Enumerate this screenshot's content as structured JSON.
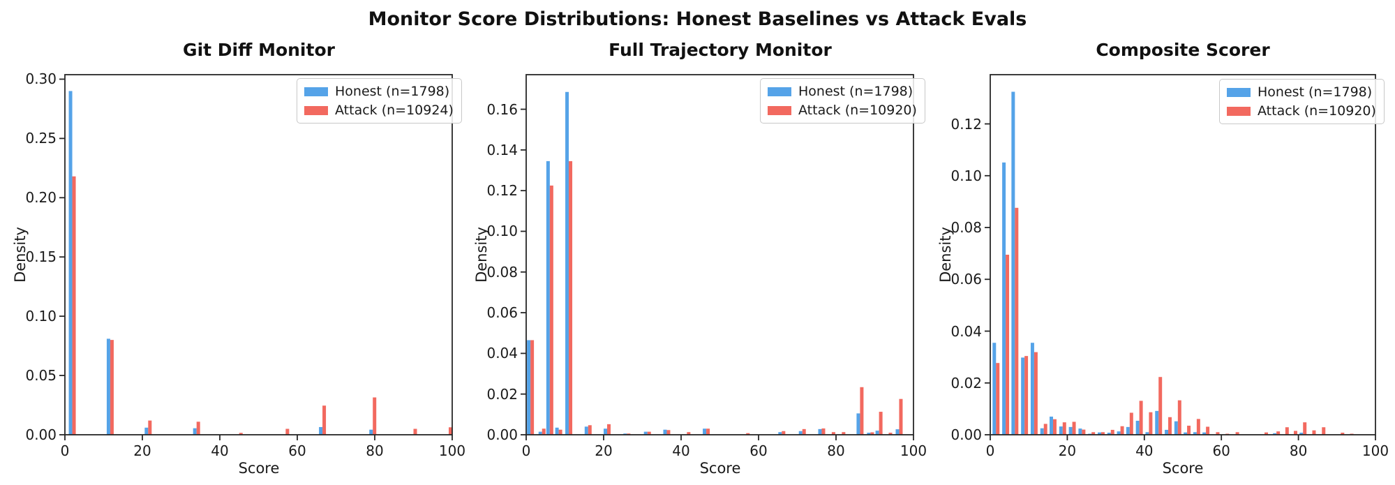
{
  "suptitle": "Monitor Score Distributions: Honest Baselines vs Attack Evals",
  "colors": {
    "honest": "#55a3e8",
    "attack": "#f2695f",
    "spine": "#262626"
  },
  "chart_data": [
    {
      "type": "bar",
      "title": "Git Diff Monitor",
      "xlabel": "Score",
      "ylabel": "Density",
      "legend_position": "upper right",
      "grid": false,
      "xlim": [
        0,
        100
      ],
      "ylim": [
        0,
        0.3038
      ],
      "xticks": [
        0,
        20,
        40,
        60,
        80,
        100
      ],
      "xtick_labels": [
        "0",
        "20",
        "40",
        "60",
        "80",
        "100"
      ],
      "yticks": [
        0.0,
        0.05,
        0.1,
        0.15,
        0.2,
        0.25,
        0.3
      ],
      "ytick_labels": [
        "0.00",
        "0.05",
        "0.10",
        "0.15",
        "0.20",
        "0.25",
        "0.30"
      ],
      "series": [
        {
          "name": "Honest (n=1798)",
          "color_key": "honest"
        },
        {
          "name": "Attack (n=10924)",
          "color_key": "attack"
        }
      ],
      "bar_width_units": 0.9,
      "bins": [
        [
          1.9,
          0.29,
          0.218
        ],
        [
          11.7,
          0.081,
          0.08
        ],
        [
          21.5,
          0.006,
          0.012
        ],
        [
          34.0,
          0.0055,
          0.011
        ],
        [
          45.0,
          0.0,
          0.0016
        ],
        [
          57.0,
          0.0,
          0.005
        ],
        [
          66.5,
          0.0065,
          0.0246
        ],
        [
          79.5,
          0.0043,
          0.0315
        ],
        [
          90.0,
          0.0,
          0.005
        ],
        [
          99.1,
          0.0,
          0.0063
        ]
      ]
    },
    {
      "type": "bar",
      "title": "Full Trajectory Monitor",
      "xlabel": "Score",
      "ylabel": "Density",
      "legend_position": "upper right",
      "grid": false,
      "xlim": [
        0,
        100
      ],
      "ylim": [
        0,
        0.177
      ],
      "xticks": [
        0,
        20,
        40,
        60,
        80,
        100
      ],
      "xtick_labels": [
        "0",
        "20",
        "40",
        "60",
        "80",
        "100"
      ],
      "yticks": [
        0.0,
        0.02,
        0.04,
        0.06,
        0.08,
        0.1,
        0.12,
        0.14,
        0.16
      ],
      "ytick_labels": [
        "0.00",
        "0.02",
        "0.04",
        "0.06",
        "0.08",
        "0.10",
        "0.12",
        "0.14",
        "0.16"
      ],
      "series": [
        {
          "name": "Honest (n=1798)",
          "color_key": "honest"
        },
        {
          "name": "Attack (n=10920)",
          "color_key": "attack"
        }
      ],
      "bar_width_units": 0.9,
      "bins": [
        [
          1.1,
          0.0465,
          0.0465
        ],
        [
          4.1,
          0.0015,
          0.003
        ],
        [
          6.1,
          0.1345,
          0.1225
        ],
        [
          8.4,
          0.0035,
          0.0025
        ],
        [
          11.0,
          0.1685,
          0.1345
        ],
        [
          16.0,
          0.004,
          0.0047
        ],
        [
          20.9,
          0.003,
          0.0052
        ],
        [
          26.0,
          0.0006,
          0.0006
        ],
        [
          31.3,
          0.0015,
          0.0015
        ],
        [
          36.3,
          0.0025,
          0.0023
        ],
        [
          41.5,
          0.0,
          0.0013
        ],
        [
          46.5,
          0.003,
          0.003
        ],
        [
          56.8,
          0.0,
          0.0008
        ],
        [
          66.0,
          0.0013,
          0.0018
        ],
        [
          71.3,
          0.0018,
          0.0028
        ],
        [
          76.3,
          0.0028,
          0.0031
        ],
        [
          78.9,
          0.0,
          0.0013
        ],
        [
          81.5,
          0.0,
          0.0013
        ],
        [
          86.2,
          0.0105,
          0.0234
        ],
        [
          88.9,
          0.001,
          0.0012
        ],
        [
          91.1,
          0.002,
          0.0113
        ],
        [
          93.6,
          0.0,
          0.001
        ],
        [
          96.3,
          0.0027,
          0.0176
        ]
      ]
    },
    {
      "type": "bar",
      "title": "Composite Scorer",
      "xlabel": "Score",
      "ylabel": "Density",
      "legend_position": "upper right",
      "grid": false,
      "xlim": [
        0,
        100
      ],
      "ylim": [
        0,
        0.139
      ],
      "xticks": [
        0,
        20,
        40,
        60,
        80,
        100
      ],
      "xtick_labels": [
        "0",
        "20",
        "40",
        "60",
        "80",
        "100"
      ],
      "yticks": [
        0.0,
        0.02,
        0.04,
        0.06,
        0.08,
        0.1,
        0.12
      ],
      "ytick_labels": [
        "0.00",
        "0.02",
        "0.04",
        "0.06",
        "0.08",
        "0.10",
        "0.12"
      ],
      "series": [
        {
          "name": "Honest (n=1798)",
          "color_key": "honest"
        },
        {
          "name": "Attack (n=10920)",
          "color_key": "attack"
        }
      ],
      "bar_width_units": 0.9,
      "bins": [
        [
          1.5,
          0.0355,
          0.0277
        ],
        [
          4.0,
          0.1051,
          0.0695
        ],
        [
          6.4,
          0.1324,
          0.0876
        ],
        [
          8.9,
          0.0298,
          0.0304
        ],
        [
          11.4,
          0.0355,
          0.0319
        ],
        [
          13.9,
          0.0025,
          0.0042
        ],
        [
          16.3,
          0.007,
          0.006
        ],
        [
          18.8,
          0.0032,
          0.0048
        ],
        [
          21.3,
          0.003,
          0.005
        ],
        [
          23.8,
          0.0024,
          0.002
        ],
        [
          26.3,
          0.0004,
          0.001
        ],
        [
          28.8,
          0.0009,
          0.001
        ],
        [
          31.3,
          0.0008,
          0.0019
        ],
        [
          33.8,
          0.0013,
          0.0033
        ],
        [
          36.2,
          0.003,
          0.0085
        ],
        [
          38.7,
          0.0054,
          0.0131
        ],
        [
          41.2,
          0.001,
          0.0087
        ],
        [
          43.7,
          0.0092,
          0.0223
        ],
        [
          46.2,
          0.0019,
          0.0068
        ],
        [
          48.7,
          0.0052,
          0.0133
        ],
        [
          51.1,
          0.0009,
          0.0035
        ],
        [
          53.6,
          0.001,
          0.0061
        ],
        [
          56.0,
          0.0009,
          0.0031
        ],
        [
          58.6,
          0.0,
          0.001
        ],
        [
          61.1,
          0.0,
          0.0004
        ],
        [
          63.7,
          0.0,
          0.001
        ],
        [
          71.2,
          0.0,
          0.0009
        ],
        [
          74.3,
          0.0006,
          0.0013
        ],
        [
          76.6,
          0.0,
          0.0029
        ],
        [
          78.8,
          0.0,
          0.0015
        ],
        [
          81.2,
          0.0008,
          0.0048
        ],
        [
          83.6,
          0.0,
          0.0017
        ],
        [
          86.1,
          0.0,
          0.0029
        ],
        [
          91.0,
          0.0,
          0.0008
        ],
        [
          93.4,
          0.0,
          0.0004
        ]
      ]
    }
  ]
}
